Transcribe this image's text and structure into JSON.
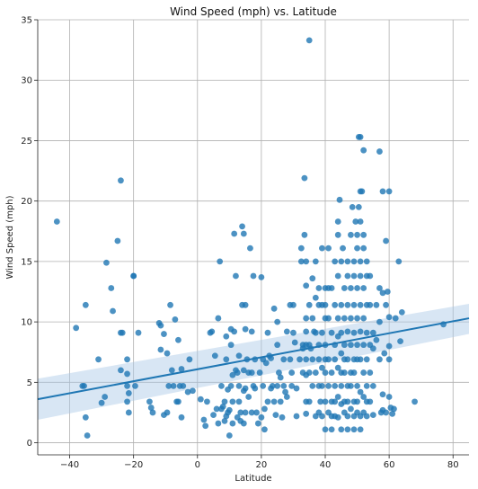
{
  "chart_data": {
    "type": "scatter",
    "title": "Wind Speed (mph) vs. Latitude",
    "xlabel": "Latitude",
    "ylabel": "Wind Speed (mph)",
    "xlim": [
      -50,
      85
    ],
    "ylim": [
      -1,
      35
    ],
    "xticks": [
      "−40",
      "−20",
      "0",
      "20",
      "40",
      "60",
      "80"
    ],
    "xtick_values": [
      -40,
      -20,
      0,
      20,
      40,
      60,
      80
    ],
    "yticks": [
      "0",
      "5",
      "10",
      "15",
      "20",
      "25",
      "30",
      "35"
    ],
    "ytick_values": [
      0,
      5,
      10,
      15,
      20,
      25,
      30,
      35
    ],
    "grid": true,
    "point_color": "#1f77b4",
    "line_color": "#1f77b4",
    "band_color": "#a8c8e6",
    "regression": {
      "x": [
        -50,
        85
      ],
      "y": [
        3.6,
        10.3
      ],
      "ci_lower": [
        1.9,
        9.0
      ],
      "ci_upper": [
        5.3,
        11.5
      ]
    },
    "points": [
      [
        -44,
        18.3
      ],
      [
        -38,
        9.5
      ],
      [
        -36,
        4.7
      ],
      [
        -35.5,
        4.7
      ],
      [
        -35,
        11.4
      ],
      [
        -35,
        2.1
      ],
      [
        -34.5,
        0.6
      ],
      [
        -31,
        6.9
      ],
      [
        -30,
        3.3
      ],
      [
        -29,
        3.8
      ],
      [
        -28.5,
        14.9
      ],
      [
        -27,
        12.8
      ],
      [
        -26.5,
        10.9
      ],
      [
        -25,
        16.7
      ],
      [
        -24,
        21.7
      ],
      [
        -24,
        9.1
      ],
      [
        -23.5,
        9.1
      ],
      [
        -24,
        6.0
      ],
      [
        -22,
        6.9
      ],
      [
        -22,
        5.7
      ],
      [
        -22,
        4.7
      ],
      [
        -21.5,
        4.1
      ],
      [
        -22,
        3.4
      ],
      [
        -21.5,
        2.5
      ],
      [
        -20,
        13.8
      ],
      [
        -20,
        13.8
      ],
      [
        -19.5,
        4.7
      ],
      [
        -18.5,
        9.1
      ],
      [
        -15,
        3.4
      ],
      [
        -14.5,
        2.9
      ],
      [
        -14,
        2.5
      ],
      [
        -12,
        9.9
      ],
      [
        -11.5,
        9.7
      ],
      [
        -11.5,
        7.7
      ],
      [
        -10.5,
        9.0
      ],
      [
        -10.5,
        2.3
      ],
      [
        -9.5,
        7.4
      ],
      [
        -9.5,
        2.5
      ],
      [
        -9,
        4.7
      ],
      [
        -8.5,
        11.4
      ],
      [
        -8,
        6.0
      ],
      [
        -7.5,
        4.7
      ],
      [
        -7,
        10.2
      ],
      [
        -6.5,
        3.4
      ],
      [
        -6,
        8.5
      ],
      [
        -6,
        3.4
      ],
      [
        -5.5,
        4.7
      ],
      [
        -5,
        2.1
      ],
      [
        -4.5,
        4.7
      ],
      [
        -5,
        6.1
      ],
      [
        -3,
        4.2
      ],
      [
        -2.5,
        6.9
      ],
      [
        -1.5,
        4.3
      ],
      [
        1,
        3.6
      ],
      [
        2,
        1.9
      ],
      [
        2.5,
        1.4
      ],
      [
        3,
        3.4
      ],
      [
        4,
        9.1
      ],
      [
        4.5,
        9.2
      ],
      [
        5,
        2.3
      ],
      [
        5.5,
        7.2
      ],
      [
        6,
        2.8
      ],
      [
        6.5,
        1.6
      ],
      [
        6.5,
        10.3
      ],
      [
        7,
        15.0
      ],
      [
        7.5,
        4.7
      ],
      [
        7.5,
        2.8
      ],
      [
        8,
        3.0
      ],
      [
        8.5,
        3.4
      ],
      [
        8.5,
        1.8
      ],
      [
        9,
        2.2
      ],
      [
        9,
        8.8
      ],
      [
        9,
        6.9
      ],
      [
        9.5,
        4.4
      ],
      [
        9.5,
        2.5
      ],
      [
        10,
        0.6
      ],
      [
        10,
        2.7
      ],
      [
        10.5,
        8.1
      ],
      [
        10.5,
        9.4
      ],
      [
        10.5,
        4.7
      ],
      [
        11,
        5.6
      ],
      [
        11,
        3.4
      ],
      [
        11,
        1.6
      ],
      [
        11.5,
        17.3
      ],
      [
        11.5,
        9.2
      ],
      [
        12,
        6.0
      ],
      [
        12,
        13.8
      ],
      [
        12.5,
        5.8
      ],
      [
        12.5,
        2.1
      ],
      [
        13,
        4.7
      ],
      [
        13,
        7.2
      ],
      [
        13,
        3.4
      ],
      [
        13.5,
        2.5
      ],
      [
        13.5,
        1.8
      ],
      [
        14,
        17.9
      ],
      [
        14,
        11.4
      ],
      [
        14.5,
        17.3
      ],
      [
        14.5,
        6.0
      ],
      [
        14.5,
        4.3
      ],
      [
        14.5,
        1.6
      ],
      [
        15,
        11.4
      ],
      [
        15,
        9.4
      ],
      [
        15,
        2.5
      ],
      [
        15,
        4.5
      ],
      [
        15.5,
        6.9
      ],
      [
        16,
        5.8
      ],
      [
        16,
        3.8
      ],
      [
        16.5,
        16.1
      ],
      [
        17,
        5.8
      ],
      [
        17,
        2.5
      ],
      [
        17,
        9.2
      ],
      [
        17.5,
        13.8
      ],
      [
        17.5,
        4.7
      ],
      [
        18,
        6.9
      ],
      [
        18,
        4.5
      ],
      [
        18.5,
        2.5
      ],
      [
        19,
        1.6
      ],
      [
        19.5,
        5.8
      ],
      [
        20,
        2.1
      ],
      [
        20,
        13.7
      ],
      [
        20.5,
        6.9
      ],
      [
        20.5,
        4.7
      ],
      [
        21,
        2.8
      ],
      [
        21,
        1.1
      ],
      [
        21.5,
        6.6
      ],
      [
        22,
        3.4
      ],
      [
        22,
        9.1
      ],
      [
        22.5,
        7.2
      ],
      [
        23,
        7.0
      ],
      [
        23,
        4.5
      ],
      [
        23.5,
        4.7
      ],
      [
        24,
        11.1
      ],
      [
        24,
        3.4
      ],
      [
        24.5,
        2.3
      ],
      [
        25,
        8.1
      ],
      [
        25,
        10.0
      ],
      [
        25,
        4.7
      ],
      [
        25.5,
        5.8
      ],
      [
        26,
        3.4
      ],
      [
        26,
        5.4
      ],
      [
        26.5,
        2.1
      ],
      [
        27,
        4.7
      ],
      [
        27,
        6.9
      ],
      [
        27.5,
        4.2
      ],
      [
        28,
        9.2
      ],
      [
        28,
        3.8
      ],
      [
        29,
        11.4
      ],
      [
        29,
        6.9
      ],
      [
        29.5,
        5.8
      ],
      [
        29.5,
        4.7
      ],
      [
        30,
        11.4
      ],
      [
        30,
        9.1
      ],
      [
        30.5,
        8.3
      ],
      [
        31,
        4.5
      ],
      [
        31,
        2.2
      ],
      [
        32,
        6.9
      ],
      [
        32.5,
        15.0
      ],
      [
        32.5,
        16.1
      ],
      [
        33,
        7.8
      ],
      [
        33,
        5.8
      ],
      [
        33,
        8.1
      ],
      [
        33.5,
        21.9
      ],
      [
        33.5,
        17.2
      ],
      [
        34,
        15.0
      ],
      [
        34,
        13.0
      ],
      [
        34,
        10.3
      ],
      [
        34,
        8.1
      ],
      [
        34,
        6.9
      ],
      [
        34,
        5.6
      ],
      [
        34,
        3.4
      ],
      [
        34,
        2.4
      ],
      [
        34,
        9.2
      ],
      [
        35,
        33.3
      ],
      [
        35,
        11.4
      ],
      [
        35,
        8.1
      ],
      [
        35,
        5.8
      ],
      [
        35,
        3.4
      ],
      [
        35.5,
        7.8
      ],
      [
        36,
        13.6
      ],
      [
        36,
        10.3
      ],
      [
        36,
        6.9
      ],
      [
        36,
        4.7
      ],
      [
        36.5,
        9.2
      ],
      [
        37,
        15.0
      ],
      [
        37,
        12.0
      ],
      [
        37,
        9.1
      ],
      [
        37,
        5.8
      ],
      [
        37,
        2.2
      ],
      [
        38,
        12.8
      ],
      [
        38,
        11.4
      ],
      [
        38,
        8.1
      ],
      [
        38,
        6.9
      ],
      [
        38,
        4.7
      ],
      [
        38,
        2.5
      ],
      [
        38.5,
        3.4
      ],
      [
        39,
        16.1
      ],
      [
        39,
        11.4
      ],
      [
        39,
        9.1
      ],
      [
        39,
        6.2
      ],
      [
        39,
        4.7
      ],
      [
        39,
        2.2
      ],
      [
        40,
        12.8
      ],
      [
        40,
        11.4
      ],
      [
        40,
        10.3
      ],
      [
        40,
        8.1
      ],
      [
        40,
        6.9
      ],
      [
        40,
        5.8
      ],
      [
        40,
        3.4
      ],
      [
        40,
        1.1
      ],
      [
        41,
        16.1
      ],
      [
        41,
        12.8
      ],
      [
        41,
        10.3
      ],
      [
        41,
        6.9
      ],
      [
        41,
        4.7
      ],
      [
        41,
        2.5
      ],
      [
        42,
        12.8
      ],
      [
        42,
        9.1
      ],
      [
        42,
        5.8
      ],
      [
        42,
        3.4
      ],
      [
        42,
        2.2
      ],
      [
        42,
        1.1
      ],
      [
        43,
        15.0
      ],
      [
        43,
        11.4
      ],
      [
        43,
        8.1
      ],
      [
        43,
        6.9
      ],
      [
        43,
        4.7
      ],
      [
        43,
        3.4
      ],
      [
        43,
        2.2
      ],
      [
        44,
        18.3
      ],
      [
        44,
        17.2
      ],
      [
        44,
        13.8
      ],
      [
        44,
        10.3
      ],
      [
        44,
        8.8
      ],
      [
        44,
        6.2
      ],
      [
        44,
        3.8
      ],
      [
        44,
        2.1
      ],
      [
        44.5,
        20.1
      ],
      [
        45,
        15.0
      ],
      [
        45,
        11.4
      ],
      [
        45,
        9.1
      ],
      [
        45,
        7.4
      ],
      [
        45,
        5.8
      ],
      [
        45,
        4.7
      ],
      [
        45,
        3.2
      ],
      [
        45,
        1.1
      ],
      [
        45.5,
        16.1
      ],
      [
        46,
        12.8
      ],
      [
        46,
        10.3
      ],
      [
        46,
        8.1
      ],
      [
        46,
        6.9
      ],
      [
        46,
        5.8
      ],
      [
        46,
        3.4
      ],
      [
        46,
        2.5
      ],
      [
        47,
        15.0
      ],
      [
        47,
        13.8
      ],
      [
        47,
        11.4
      ],
      [
        47,
        9.2
      ],
      [
        47,
        6.9
      ],
      [
        47,
        4.7
      ],
      [
        47,
        3.4
      ],
      [
        47,
        2.2
      ],
      [
        47,
        1.1
      ],
      [
        48,
        17.2
      ],
      [
        48,
        12.8
      ],
      [
        48,
        10.3
      ],
      [
        48,
        8.1
      ],
      [
        48,
        5.8
      ],
      [
        48,
        4.7
      ],
      [
        48,
        2.8
      ],
      [
        48.5,
        19.5
      ],
      [
        49,
        15.0
      ],
      [
        49,
        13.8
      ],
      [
        49,
        11.4
      ],
      [
        49,
        9.1
      ],
      [
        49,
        6.9
      ],
      [
        49,
        5.8
      ],
      [
        49,
        3.4
      ],
      [
        49,
        2.2
      ],
      [
        49,
        1.1
      ],
      [
        49.5,
        18.3
      ],
      [
        50,
        17.2
      ],
      [
        50,
        16.1
      ],
      [
        50,
        12.8
      ],
      [
        50,
        10.3
      ],
      [
        50,
        8.1
      ],
      [
        50,
        6.9
      ],
      [
        50,
        4.7
      ],
      [
        50,
        3.4
      ],
      [
        50,
        2.5
      ],
      [
        50.5,
        25.3
      ],
      [
        50.5,
        19.5
      ],
      [
        51,
        25.3
      ],
      [
        51,
        20.8
      ],
      [
        51,
        18.3
      ],
      [
        51,
        15.0
      ],
      [
        51,
        13.8
      ],
      [
        51,
        11.4
      ],
      [
        51,
        9.2
      ],
      [
        51,
        6.9
      ],
      [
        51,
        4.2
      ],
      [
        51,
        2.2
      ],
      [
        51,
        1.1
      ],
      [
        51.5,
        20.8
      ],
      [
        52,
        24.2
      ],
      [
        52,
        17.2
      ],
      [
        52,
        16.1
      ],
      [
        52,
        12.8
      ],
      [
        52,
        10.3
      ],
      [
        52,
        8.1
      ],
      [
        52,
        5.8
      ],
      [
        52,
        3.8
      ],
      [
        52,
        2.5
      ],
      [
        53,
        15.0
      ],
      [
        53,
        13.8
      ],
      [
        53,
        11.4
      ],
      [
        53,
        9.1
      ],
      [
        53,
        6.9
      ],
      [
        53,
        4.7
      ],
      [
        53,
        3.4
      ],
      [
        53,
        2.2
      ],
      [
        54,
        13.8
      ],
      [
        54,
        11.4
      ],
      [
        54,
        8.1
      ],
      [
        54,
        5.8
      ],
      [
        54,
        3.4
      ],
      [
        55,
        9.1
      ],
      [
        55,
        7.8
      ],
      [
        55,
        4.7
      ],
      [
        55,
        2.3
      ],
      [
        56,
        11.4
      ],
      [
        56,
        8.5
      ],
      [
        57,
        24.1
      ],
      [
        57,
        12.8
      ],
      [
        57,
        10.0
      ],
      [
        57,
        6.9
      ],
      [
        57.5,
        2.5
      ],
      [
        58,
        20.8
      ],
      [
        58,
        12.4
      ],
      [
        58,
        4.0
      ],
      [
        58,
        2.7
      ],
      [
        58.5,
        7.4
      ],
      [
        59,
        16.7
      ],
      [
        59,
        11.4
      ],
      [
        59,
        2.5
      ],
      [
        59.5,
        12.5
      ],
      [
        60,
        20.8
      ],
      [
        60,
        10.4
      ],
      [
        60,
        8.0
      ],
      [
        60,
        6.9
      ],
      [
        60,
        3.8
      ],
      [
        60.5,
        2.9
      ],
      [
        61,
        2.4
      ],
      [
        61.5,
        2.8
      ],
      [
        62,
        10.3
      ],
      [
        63,
        15.0
      ],
      [
        63.5,
        8.4
      ],
      [
        64,
        10.8
      ],
      [
        68,
        3.4
      ],
      [
        77,
        9.8
      ]
    ]
  }
}
